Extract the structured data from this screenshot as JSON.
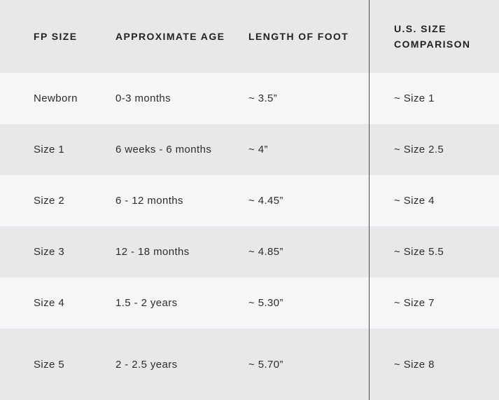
{
  "colors": {
    "row_gray": "#e9e8e8",
    "row_light": "#f6f6f8",
    "divider": "#4a4a4a",
    "text": "#2d2d2d"
  },
  "table": {
    "columns": [
      {
        "key": "fp_size",
        "label": "FP SIZE"
      },
      {
        "key": "age",
        "label": "APPROXIMATE AGE"
      },
      {
        "key": "foot",
        "label": "LENGTH OF FOOT"
      },
      {
        "key": "us",
        "label": "U.S. SIZE COMPARISON"
      }
    ],
    "rows": [
      {
        "fp_size": "Newborn",
        "age": "0-3 months",
        "foot": "~ 3.5”",
        "us": "~ Size 1"
      },
      {
        "fp_size": "Size 1",
        "age": "6 weeks - 6 months",
        "foot": "~ 4”",
        "us": "~ Size 2.5"
      },
      {
        "fp_size": "Size 2",
        "age": "6 - 12 months",
        "foot": "~ 4.45”",
        "us": "~ Size 4"
      },
      {
        "fp_size": "Size 3",
        "age": "12 - 18 months",
        "foot": "~ 4.85”",
        "us": "~ Size 5.5"
      },
      {
        "fp_size": "Size 4",
        "age": "1.5 - 2 years",
        "foot": "~ 5.30”",
        "us": "~ Size 7"
      },
      {
        "fp_size": "Size 5",
        "age": "2 - 2.5 years",
        "foot": "~ 5.70”",
        "us": "~ Size 8"
      }
    ]
  }
}
